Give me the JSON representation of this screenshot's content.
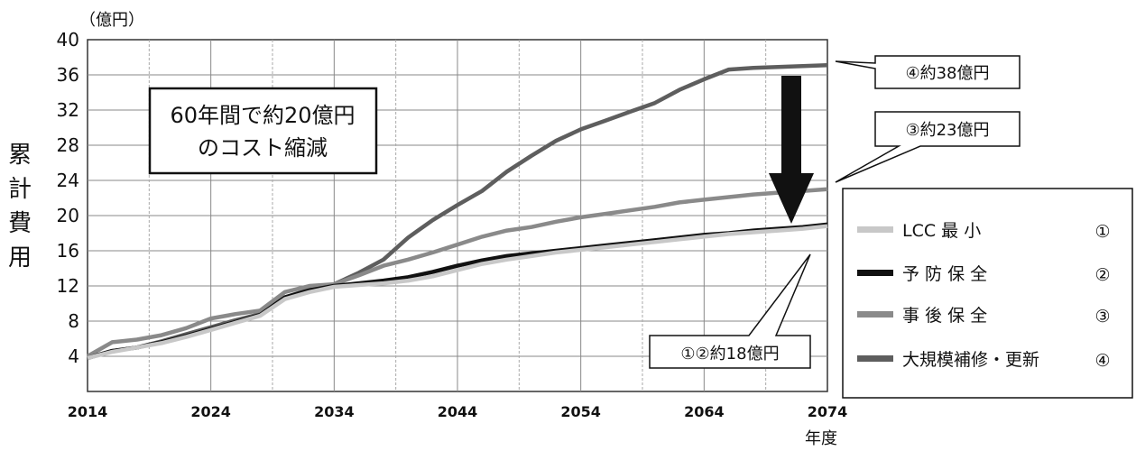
{
  "chart_data": {
    "type": "line",
    "y_unit": "（億円）",
    "ylabel_chars": [
      "累",
      "計",
      "費",
      "用"
    ],
    "xlabel": "年度",
    "x_ticks": [
      2014,
      2024,
      2034,
      2044,
      2054,
      2064,
      2074
    ],
    "y_ticks": [
      4,
      8,
      12,
      16,
      20,
      24,
      28,
      32,
      36,
      40
    ],
    "xlim": [
      2014,
      2074
    ],
    "ylim": [
      0,
      40
    ],
    "grid": true,
    "legend_position": "right",
    "series": [
      {
        "name": "LCC 最 小",
        "marker": "①",
        "color": "#c8c8c8",
        "x": [
          2014,
          2016,
          2018,
          2020,
          2022,
          2024,
          2026,
          2028,
          2030,
          2032,
          2034,
          2036,
          2038,
          2040,
          2042,
          2044,
          2046,
          2048,
          2050,
          2052,
          2054,
          2056,
          2058,
          2060,
          2062,
          2064,
          2066,
          2068,
          2070,
          2072,
          2074
        ],
        "y": [
          3.8,
          4.5,
          5.0,
          5.5,
          6.2,
          7.0,
          7.8,
          8.6,
          10.5,
          11.3,
          11.9,
          12.1,
          12.3,
          12.6,
          13.1,
          13.8,
          14.5,
          15.0,
          15.4,
          15.8,
          16.1,
          16.4,
          16.7,
          17.0,
          17.3,
          17.6,
          17.9,
          18.1,
          18.3,
          18.5,
          18.8
        ]
      },
      {
        "name": "予 防 保 全",
        "marker": "②",
        "color": "#111111",
        "x": [
          2014,
          2016,
          2018,
          2020,
          2022,
          2024,
          2026,
          2028,
          2030,
          2032,
          2034,
          2036,
          2038,
          2040,
          2042,
          2044,
          2046,
          2048,
          2050,
          2052,
          2054,
          2056,
          2058,
          2060,
          2062,
          2064,
          2066,
          2068,
          2070,
          2072,
          2074
        ],
        "y": [
          3.8,
          4.6,
          5.0,
          5.6,
          6.3,
          7.1,
          7.9,
          8.7,
          10.7,
          11.5,
          12.0,
          12.3,
          12.6,
          13.0,
          13.6,
          14.3,
          14.9,
          15.4,
          15.7,
          16.0,
          16.3,
          16.6,
          16.9,
          17.2,
          17.5,
          17.8,
          18.0,
          18.3,
          18.5,
          18.7,
          19.0
        ]
      },
      {
        "name": "事 後 保 全",
        "marker": "③",
        "color": "#8a8a8a",
        "x": [
          2014,
          2016,
          2018,
          2020,
          2022,
          2024,
          2026,
          2028,
          2030,
          2032,
          2034,
          2036,
          2038,
          2040,
          2042,
          2044,
          2046,
          2048,
          2050,
          2052,
          2054,
          2056,
          2058,
          2060,
          2062,
          2064,
          2066,
          2068,
          2070,
          2072,
          2074
        ],
        "y": [
          4.0,
          5.6,
          5.9,
          6.4,
          7.2,
          8.3,
          8.8,
          9.2,
          11.3,
          12.0,
          12.2,
          13.2,
          14.3,
          15.0,
          15.8,
          16.7,
          17.6,
          18.3,
          18.7,
          19.3,
          19.8,
          20.2,
          20.6,
          21.0,
          21.5,
          21.8,
          22.1,
          22.4,
          22.6,
          22.8,
          23.0
        ]
      },
      {
        "name": "大規模補修・更新",
        "marker": "④",
        "color": "#5e5e5e",
        "x": [
          2014,
          2016,
          2018,
          2020,
          2022,
          2024,
          2026,
          2028,
          2030,
          2032,
          2034,
          2036,
          2038,
          2040,
          2042,
          2044,
          2046,
          2048,
          2050,
          2052,
          2054,
          2056,
          2058,
          2060,
          2062,
          2064,
          2066,
          2068,
          2070,
          2072,
          2074
        ],
        "y": [
          3.8,
          4.6,
          5.0,
          5.7,
          6.5,
          7.3,
          8.1,
          8.8,
          10.7,
          11.6,
          12.2,
          13.5,
          15.0,
          17.5,
          19.5,
          21.2,
          22.8,
          25.0,
          26.8,
          28.5,
          29.8,
          30.8,
          31.8,
          32.8,
          34.3,
          35.5,
          36.6,
          36.8,
          36.9,
          37.0,
          37.1
        ]
      }
    ],
    "annotations": {
      "reduction_box_line1": "60年間で約20億円",
      "reduction_box_line2": "のコスト縮減",
      "callout_4": "④約38億円",
      "callout_3": "③約23億円",
      "callout_12": "①②約18億円"
    }
  }
}
